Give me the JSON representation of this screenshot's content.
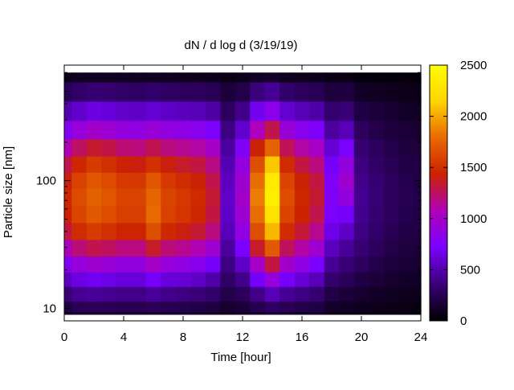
{
  "chart_data": {
    "type": "heatmap",
    "title": "dN / d log d (3/19/19)",
    "xlabel": "Time [hour]",
    "ylabel": "Particle size [nm]",
    "xlim": [
      0,
      24
    ],
    "ylim": [
      8,
      800
    ],
    "y_scale": "log",
    "x_ticks": [
      0,
      4,
      8,
      12,
      16,
      20,
      24
    ],
    "x_tick_labels": [
      "0",
      "4",
      "8",
      "12",
      "16",
      "20",
      "24"
    ],
    "y_ticks": [
      10,
      100
    ],
    "y_tick_labels": [
      "10",
      "100"
    ],
    "colorbar": {
      "min": 0,
      "max": 2500,
      "ticks": [
        0,
        500,
        1000,
        1500,
        2000,
        2500
      ],
      "tick_labels": [
        "0",
        "500",
        "1000",
        "1500",
        "2000",
        "2500"
      ],
      "palette": [
        "#000000",
        "#3a007a",
        "#7a00ff",
        "#b000b8",
        "#cc2200",
        "#e86a00",
        "#ffd400",
        "#ffff00"
      ]
    },
    "size_axis_nm": [
      9,
      10,
      13,
      17,
      22,
      30,
      40,
      55,
      75,
      100,
      135,
      180,
      250,
      350,
      500,
      700
    ],
    "time_axis_hour": [
      0,
      1,
      2,
      3,
      4,
      5,
      6,
      7,
      8,
      9,
      10,
      11,
      12,
      13,
      14,
      15,
      16,
      17,
      18,
      19,
      20,
      21,
      22,
      23,
      24
    ],
    "values": [
      [
        120,
        150,
        160,
        150,
        140,
        140,
        150,
        140,
        140,
        120,
        110,
        90,
        110,
        130,
        160,
        140,
        120,
        110,
        80,
        70,
        60,
        50,
        40,
        40,
        30
      ],
      [
        200,
        250,
        260,
        250,
        240,
        240,
        260,
        240,
        230,
        210,
        190,
        140,
        170,
        230,
        290,
        250,
        220,
        200,
        130,
        110,
        90,
        80,
        70,
        60,
        50
      ],
      [
        350,
        420,
        440,
        420,
        400,
        400,
        440,
        400,
        380,
        350,
        310,
        220,
        260,
        400,
        520,
        430,
        380,
        330,
        210,
        170,
        140,
        120,
        100,
        90,
        80
      ],
      [
        550,
        640,
        680,
        650,
        620,
        620,
        700,
        620,
        600,
        560,
        480,
        300,
        400,
        700,
        900,
        700,
        600,
        520,
        320,
        260,
        200,
        170,
        140,
        120,
        110
      ],
      [
        780,
        900,
        950,
        920,
        880,
        880,
        1000,
        900,
        860,
        800,
        700,
        380,
        560,
        1000,
        1300,
        980,
        850,
        720,
        430,
        350,
        270,
        220,
        180,
        160,
        140
      ],
      [
        1050,
        1200,
        1280,
        1240,
        1180,
        1180,
        1350,
        1200,
        1150,
        1080,
        950,
        450,
        720,
        1350,
        1700,
        1250,
        1100,
        950,
        540,
        440,
        330,
        270,
        220,
        190,
        170
      ],
      [
        1300,
        1470,
        1560,
        1500,
        1440,
        1440,
        1650,
        1460,
        1400,
        1330,
        1180,
        520,
        860,
        1650,
        2050,
        1480,
        1320,
        1150,
        650,
        560,
        380,
        310,
        250,
        210,
        190
      ],
      [
        1420,
        1600,
        1700,
        1640,
        1570,
        1570,
        1780,
        1580,
        1520,
        1450,
        1300,
        560,
        940,
        1800,
        2250,
        1600,
        1430,
        1280,
        720,
        700,
        410,
        330,
        270,
        230,
        200
      ],
      [
        1450,
        1630,
        1740,
        1680,
        1600,
        1600,
        1760,
        1600,
        1540,
        1470,
        1330,
        570,
        970,
        1850,
        2350,
        1640,
        1460,
        1330,
        760,
        880,
        420,
        340,
        280,
        240,
        210
      ],
      [
        1400,
        1580,
        1690,
        1630,
        1550,
        1540,
        1680,
        1540,
        1480,
        1420,
        1280,
        550,
        940,
        1800,
        2320,
        1600,
        1420,
        1300,
        760,
        950,
        400,
        330,
        270,
        230,
        200
      ],
      [
        1280,
        1450,
        1560,
        1500,
        1420,
        1400,
        1500,
        1400,
        1350,
        1300,
        1170,
        510,
        870,
        1650,
        2100,
        1470,
        1300,
        1180,
        700,
        880,
        370,
        300,
        250,
        210,
        190
      ],
      [
        1080,
        1240,
        1340,
        1290,
        1210,
        1190,
        1270,
        1190,
        1150,
        1110,
        1000,
        460,
        760,
        1420,
        1750,
        1260,
        1110,
        1000,
        600,
        720,
        330,
        270,
        220,
        190,
        170
      ],
      [
        780,
        900,
        980,
        940,
        880,
        870,
        920,
        870,
        840,
        810,
        730,
        380,
        580,
        1050,
        1280,
        920,
        810,
        740,
        460,
        520,
        270,
        220,
        180,
        160,
        140
      ],
      [
        500,
        580,
        640,
        610,
        570,
        560,
        590,
        560,
        540,
        520,
        470,
        280,
        400,
        680,
        820,
        590,
        520,
        480,
        320,
        340,
        200,
        170,
        140,
        120,
        110
      ],
      [
        260,
        300,
        330,
        320,
        300,
        290,
        310,
        290,
        280,
        270,
        250,
        170,
        220,
        360,
        430,
        310,
        270,
        250,
        180,
        190,
        120,
        100,
        90,
        80,
        70
      ],
      [
        80,
        90,
        100,
        95,
        90,
        90,
        95,
        90,
        85,
        80,
        75,
        55,
        70,
        110,
        130,
        95,
        85,
        75,
        60,
        60,
        40,
        35,
        30,
        28,
        25
      ]
    ]
  }
}
